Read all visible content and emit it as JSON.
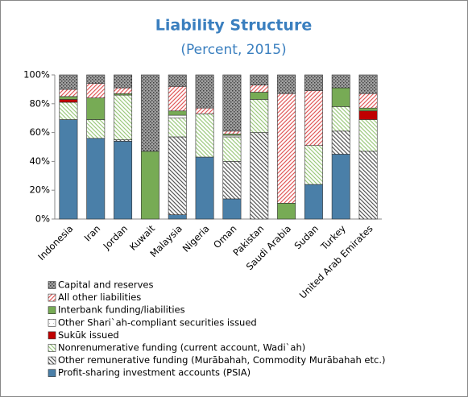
{
  "chart_data": {
    "type": "stacked-bar",
    "title": "Liability Structure",
    "subtitle": "(Percent, 2015)",
    "categories": [
      "Indonesia",
      "Iran",
      "Jordan",
      "Kuwait",
      "Malaysia",
      "Nigeria",
      "Oman",
      "Pakistan",
      "Saudi Arabia",
      "Sudan",
      "Turkey",
      "United Arab Emirates"
    ],
    "ylim": [
      0,
      100
    ],
    "yticks": [
      {
        "value": 0,
        "label": "0%"
      },
      {
        "value": 20,
        "label": "20%"
      },
      {
        "value": 40,
        "label": "40%"
      },
      {
        "value": 60,
        "label": "60%"
      },
      {
        "value": 80,
        "label": "80%"
      },
      {
        "value": 100,
        "label": "100%"
      }
    ],
    "series": [
      {
        "name": "Profit-sharing investment accounts (PSIA)",
        "color": "#4a7fa8",
        "pattern": "solid",
        "values": [
          69,
          56,
          54,
          0,
          3,
          43,
          14,
          0,
          0,
          24,
          45,
          0
        ]
      },
      {
        "name": "Other remunerative funding (Murābahah, Commodity Murābahah etc.)",
        "color": "#555555",
        "pattern": "hatch",
        "values": [
          0,
          0,
          1,
          0,
          54,
          0,
          26,
          60,
          0,
          0,
          16,
          47
        ]
      },
      {
        "name": "Nonrenumerative funding (current account, Wadi`ah)",
        "color": "#9cc97e",
        "pattern": "hatch",
        "values": [
          12,
          13,
          31,
          0,
          13,
          30,
          17,
          23,
          0,
          27,
          17,
          22
        ]
      },
      {
        "name": "Sukūk issued",
        "color": "#c00000",
        "pattern": "solid",
        "values": [
          2,
          0,
          0,
          0,
          0,
          0,
          0,
          0,
          0,
          0,
          0,
          6
        ]
      },
      {
        "name": "Other Shari`ah-compliant securities issued",
        "color": "#bbbbbb",
        "pattern": "dots",
        "values": [
          0,
          0,
          0,
          0,
          2,
          0,
          1,
          0,
          0,
          0,
          0,
          0
        ]
      },
      {
        "name": "Interbank funding/liabilities",
        "color": "#77ab55",
        "pattern": "solid",
        "values": [
          2,
          15,
          1,
          47,
          3,
          0,
          1,
          5,
          11,
          0,
          13,
          2
        ]
      },
      {
        "name": "All other liabilities",
        "color": "#e05a5a",
        "pattern": "hatch-fwd",
        "values": [
          5,
          10,
          4,
          0,
          17,
          4,
          2,
          5,
          76,
          38,
          0,
          10
        ]
      },
      {
        "name": "Capital and reserves",
        "color": "#a0a0a0",
        "pattern": "dots-dark",
        "values": [
          10,
          6,
          9,
          53,
          8,
          23,
          39,
          7,
          13,
          11,
          9,
          13
        ]
      }
    ]
  }
}
